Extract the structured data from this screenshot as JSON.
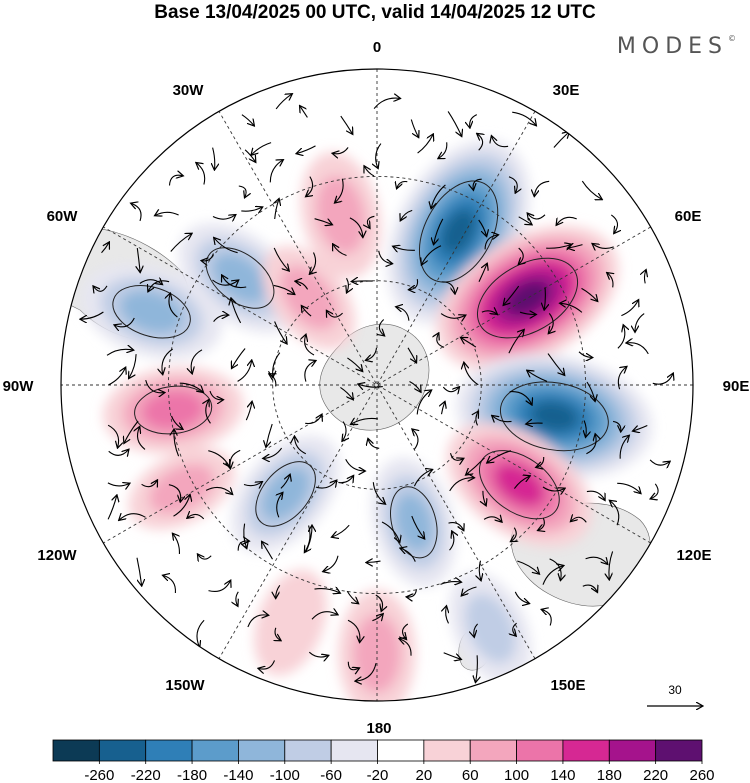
{
  "title": "Base 13/04/2025 00 UTC, valid 14/04/2025 12 UTC",
  "brand": "MODES",
  "brand_mark": "©",
  "longitude_labels": {
    "lon_0": "0",
    "lon_30e": "30E",
    "lon_60e": "60E",
    "lon_90e": "90E",
    "lon_120e": "120E",
    "lon_150e": "150E",
    "lon_180": "180",
    "lon_150w": "150W",
    "lon_120w": "120W",
    "lon_90w": "90W",
    "lon_60w": "60W",
    "lon_30w": "30W"
  },
  "reference_vector_label": "30",
  "colorbar": {
    "tick_labels": [
      "-260",
      "-220",
      "-180",
      "-140",
      "-100",
      "-60",
      "-20",
      "20",
      "60",
      "100",
      "140",
      "180",
      "220",
      "260"
    ],
    "colors": [
      "#0c3a55",
      "#17608f",
      "#2f7fb7",
      "#5c9ccb",
      "#8fb6da",
      "#c0cde5",
      "#e6e6f1",
      "#ffffff",
      "#f8d2d7",
      "#f3a6bd",
      "#ec74a9",
      "#d62893",
      "#a5138c",
      "#5e1070"
    ]
  },
  "anomaly_features": [
    {
      "sign": "negative",
      "lon": 28,
      "ring": 0.55,
      "level": -250
    },
    {
      "sign": "positive",
      "lon": 60,
      "ring": 0.55,
      "level": 250
    },
    {
      "sign": "negative",
      "lon": 100,
      "ring": 0.57,
      "level": -250
    },
    {
      "sign": "positive",
      "lon": 125,
      "ring": 0.55,
      "level": 170
    },
    {
      "sign": "negative",
      "lon": -52,
      "ring": 0.55,
      "level": -120
    },
    {
      "sign": "negative",
      "lon": -72,
      "ring": 0.75,
      "level": -130
    },
    {
      "sign": "positive",
      "lon": -97,
      "ring": 0.65,
      "level": 120
    },
    {
      "sign": "positive",
      "lon": -12,
      "ring": 0.55,
      "level": 90
    },
    {
      "sign": "positive",
      "lon": -38,
      "ring": 0.35,
      "level": 70
    },
    {
      "sign": "negative",
      "lon": -140,
      "ring": 0.45,
      "level": -110
    },
    {
      "sign": "negative",
      "lon": 165,
      "ring": 0.45,
      "level": -100
    },
    {
      "sign": "positive",
      "lon": 180,
      "ring": 0.85,
      "level": 90
    },
    {
      "sign": "negative",
      "lon": 155,
      "ring": 0.85,
      "level": -70
    },
    {
      "sign": "positive",
      "lon": -118,
      "ring": 0.7,
      "level": 60
    },
    {
      "sign": "positive",
      "lon": -160,
      "ring": 0.8,
      "level": 50
    }
  ]
}
